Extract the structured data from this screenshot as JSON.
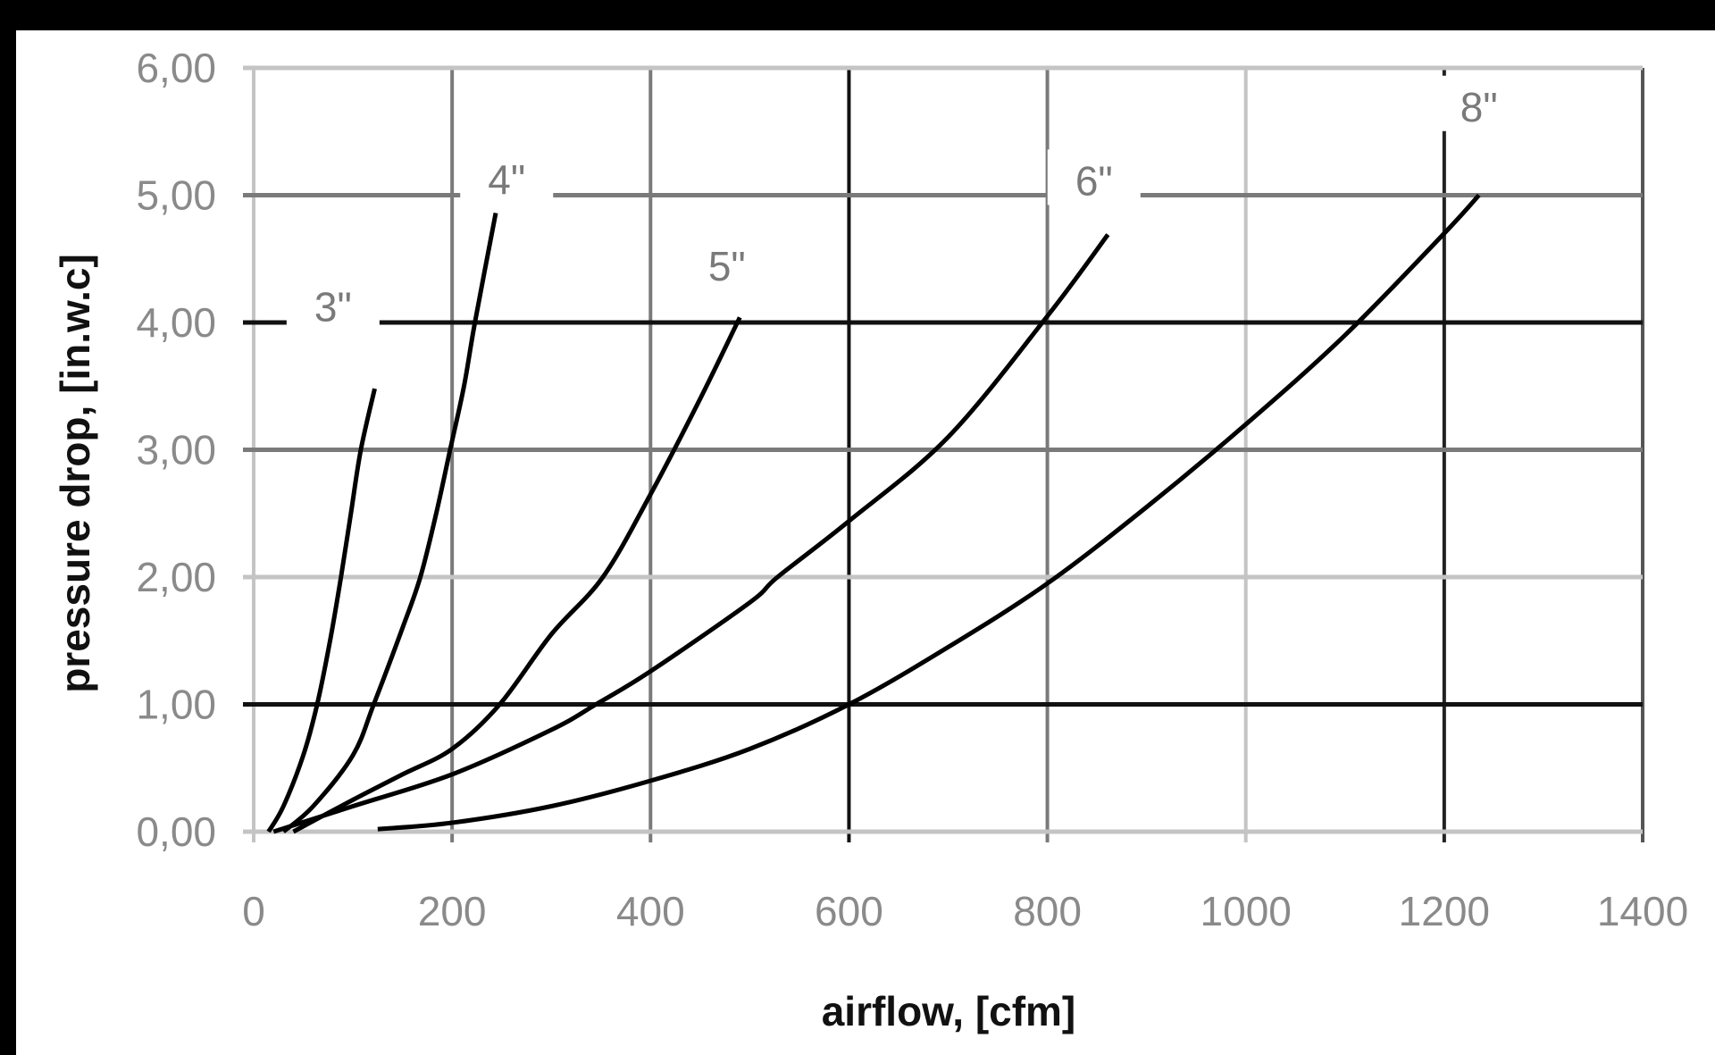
{
  "chart_data": {
    "type": "line",
    "title": "",
    "xlabel": "airflow, [cfm]",
    "ylabel": "pressure drop, [in.w.c]",
    "xlim": [
      0,
      1400
    ],
    "ylim": [
      0,
      6
    ],
    "x_ticks": [
      0,
      200,
      400,
      600,
      800,
      1000,
      1200,
      1400
    ],
    "x_tick_labels": [
      "0",
      "200",
      "400",
      "600",
      "800",
      "1000",
      "1200",
      "1400"
    ],
    "y_ticks": [
      0,
      1,
      2,
      3,
      4,
      5,
      6
    ],
    "y_tick_labels": [
      "0,00",
      "1,00",
      "2,00",
      "3,00",
      "4,00",
      "5,00",
      "6,00"
    ],
    "grid": true,
    "legend": "none (inline curve labels)",
    "series": [
      {
        "name": "3\"",
        "label_pos": [
          80,
          4.13
        ],
        "x": [
          15,
          30,
          50,
          64,
          77,
          88,
          98,
          108,
          122
        ],
        "y": [
          0.0,
          0.2,
          0.6,
          1.0,
          1.5,
          2.0,
          2.5,
          3.0,
          3.48
        ]
      },
      {
        "name": "4\"",
        "label_pos": [
          255,
          5.13
        ],
        "x": [
          30,
          60,
          100,
          121,
          150,
          168,
          184,
          198,
          212,
          223,
          244
        ],
        "y": [
          0.0,
          0.2,
          0.6,
          1.0,
          1.6,
          2.0,
          2.5,
          3.0,
          3.5,
          4.0,
          4.86
        ]
      },
      {
        "name": "5\"",
        "label_pos": [
          477,
          4.45
        ],
        "x": [
          40,
          100,
          150,
          200,
          248,
          300,
          352,
          400,
          450,
          490
        ],
        "y": [
          0.0,
          0.25,
          0.45,
          0.65,
          1.0,
          1.55,
          2.0,
          2.65,
          3.4,
          4.04
        ]
      },
      {
        "name": "6\"",
        "label_pos": [
          847,
          5.12
        ],
        "x": [
          20,
          100,
          200,
          300,
          345,
          400,
          500,
          528,
          600,
          700,
          800,
          861
        ],
        "y": [
          0.0,
          0.2,
          0.45,
          0.8,
          1.0,
          1.26,
          1.8,
          2.0,
          2.44,
          3.1,
          4.05,
          4.69
        ]
      },
      {
        "name": "8\"",
        "label_pos": [
          1235,
          5.7
        ],
        "x": [
          125,
          200,
          300,
          400,
          500,
          600,
          700,
          800,
          900,
          1000,
          1100,
          1200,
          1235
        ],
        "y": [
          0.02,
          0.07,
          0.2,
          0.4,
          0.65,
          1.0,
          1.45,
          1.95,
          2.55,
          3.2,
          3.9,
          4.7,
          5.0
        ]
      }
    ]
  },
  "style": {
    "frame_color": "#000000",
    "background": "#ffffff",
    "curve_color": "#000000",
    "grid_h_colors": [
      "#c4c4c4",
      "#111111",
      "#c4c4c4",
      "#7a7a7a",
      "#111111",
      "#7a7a7a",
      "#c4c4c4"
    ],
    "grid_v_colors": [
      "#c4c4c4",
      "#7a7a7a",
      "#7a7a7a",
      "#111111",
      "#7a7a7a",
      "#c4c4c4",
      "#222222",
      "#555555"
    ]
  }
}
